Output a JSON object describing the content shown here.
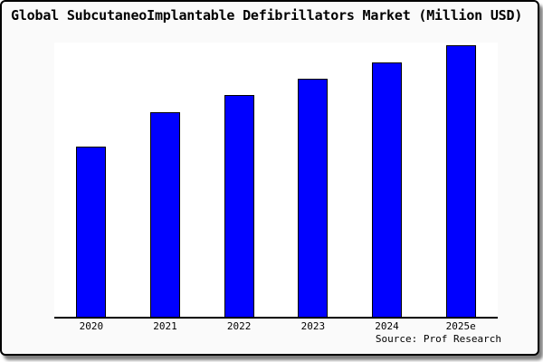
{
  "window": {
    "title": "Global SubcutaneoImplantable Defibrillators Market (Million USD)"
  },
  "chart_data": {
    "type": "bar",
    "title": "Global SubcutaneoImplantable Defibrillators Market (Million USD)",
    "categories": [
      "2020",
      "2021",
      "2022",
      "2023",
      "2024",
      "2025e"
    ],
    "values": [
      62.7,
      75.3,
      81.7,
      87.7,
      93.7,
      100
    ],
    "value_note": "y-axis is unlabeled in the image; values are relative bar heights with tallest bar (2025e) = 100",
    "xlabel": "",
    "ylabel": "",
    "ylim": [
      0,
      100
    ],
    "grid": false,
    "legend": false,
    "bar_color": "#0000ff",
    "bar_border_color": "#000000",
    "axis_color": "#000000",
    "plot_background": "#ffffff",
    "page_background": "#fafafa"
  },
  "footer": {
    "source_label": "Source: Prof Research"
  }
}
